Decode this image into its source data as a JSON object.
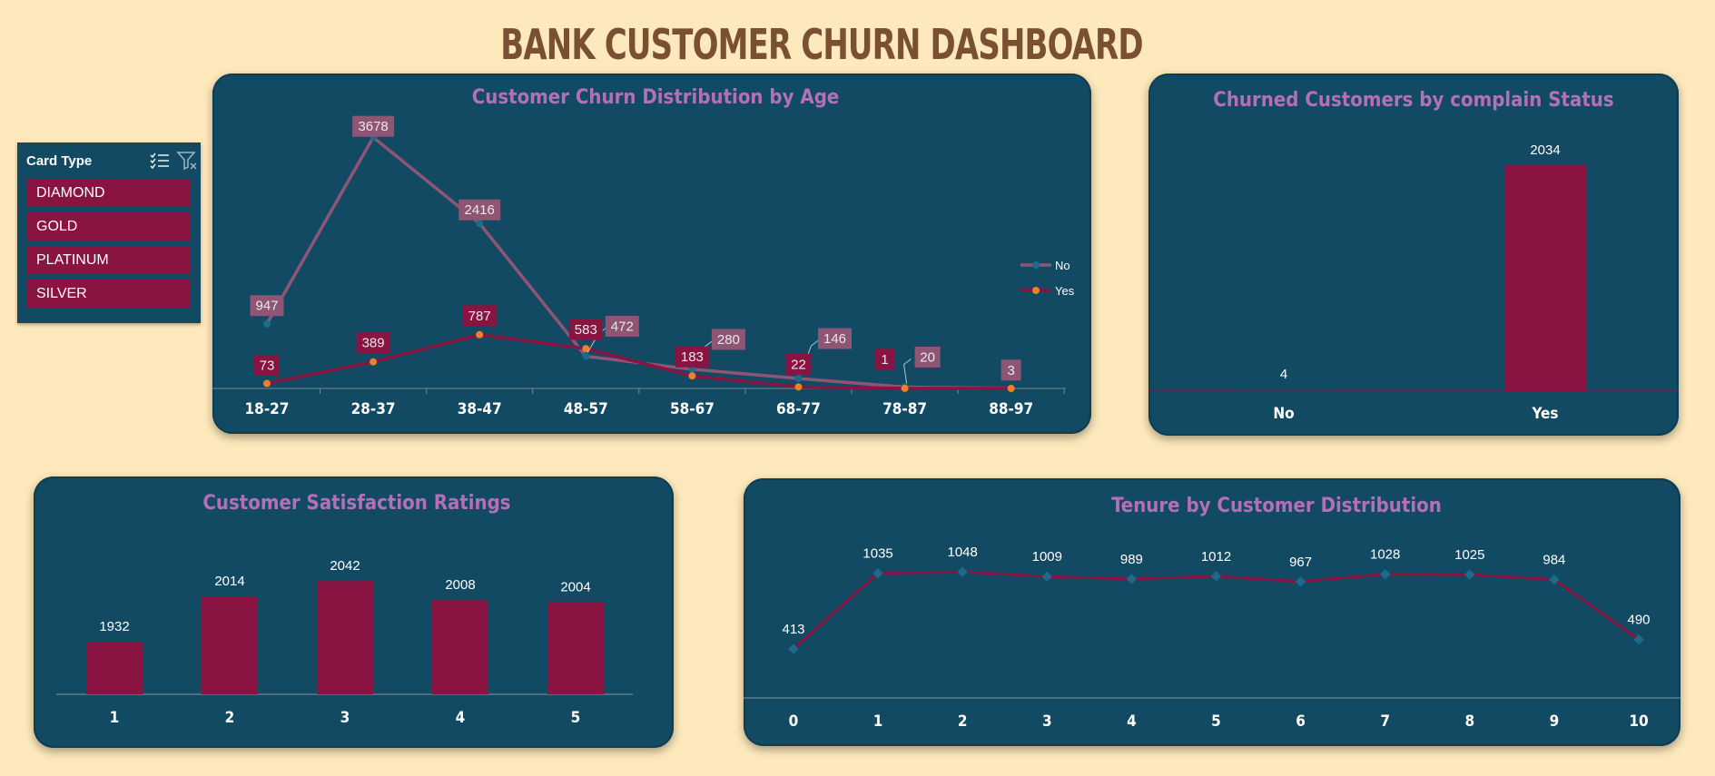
{
  "dashboard": {
    "title": "BANK CUSTOMER CHURN DASHBOARD"
  },
  "colors": {
    "background": "#FDE9BB",
    "panel": "#124A63",
    "title": "#7A5033",
    "panel_title": "#B36FB8",
    "series_no": "#8E5575",
    "series_yes": "#8A1441",
    "marker_no": "#1C6B8C",
    "marker_yes": "#F07F2A",
    "bar": "#8A1441"
  },
  "slicer": {
    "title": "Card Type",
    "multiselect_icon": "multi-select-icon",
    "clear_filter_icon": "clear-filter-icon",
    "items": [
      "DIAMOND",
      "GOLD",
      "PLATINUM",
      "SILVER"
    ]
  },
  "chart_data": [
    {
      "id": "age",
      "type": "line",
      "title": "Customer Churn Distribution by Age",
      "categories": [
        "18-27",
        "28-37",
        "38-47",
        "48-57",
        "58-67",
        "68-77",
        "78-87",
        "88-97"
      ],
      "series": [
        {
          "name": "No",
          "values": [
            947,
            3678,
            2416,
            472,
            280,
            146,
            20,
            3
          ]
        },
        {
          "name": "Yes",
          "values": [
            73,
            389,
            787,
            583,
            183,
            22,
            1,
            0
          ]
        }
      ],
      "data_labels": {
        "No": [
          "947",
          "3678",
          "2416",
          "472",
          "280",
          "146",
          "20",
          "3"
        ],
        "Yes": [
          "73",
          "389",
          "787",
          "583",
          "183",
          "22",
          "1",
          ""
        ]
      },
      "legend": "right",
      "ylim": [
        0,
        4000
      ]
    },
    {
      "id": "complain",
      "type": "bar",
      "title": "Churned Customers by complain Status",
      "categories": [
        "No",
        "Yes"
      ],
      "values": [
        4,
        2034
      ],
      "ylim": [
        0,
        2100
      ]
    },
    {
      "id": "satisfaction",
      "type": "bar",
      "title": "Customer Satisfaction Ratings",
      "categories": [
        "1",
        "2",
        "3",
        "4",
        "5"
      ],
      "values": [
        1932,
        2014,
        2042,
        2008,
        2004
      ],
      "ylim": [
        1850,
        2080
      ]
    },
    {
      "id": "tenure",
      "type": "line",
      "title": "Tenure by Customer Distribution",
      "categories": [
        "0",
        "1",
        "2",
        "3",
        "4",
        "5",
        "6",
        "7",
        "8",
        "9",
        "10"
      ],
      "values": [
        413,
        1035,
        1048,
        1009,
        989,
        1012,
        967,
        1028,
        1025,
        984,
        490
      ],
      "ylim": [
        0,
        1200
      ]
    }
  ]
}
